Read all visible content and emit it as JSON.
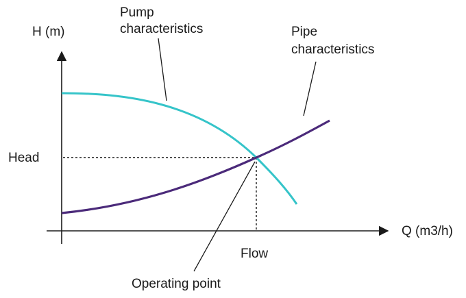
{
  "diagram": {
    "y_axis_label": "H (m)",
    "x_axis_label": "Q (m3/h)",
    "head_label": "Head",
    "flow_label": "Flow",
    "pump_label": [
      "Pump",
      "characteristics"
    ],
    "pipe_label": [
      "Pipe",
      "characteristics"
    ],
    "operating_point_label": "Operating point",
    "colors": {
      "pump_curve": "#35c4c9",
      "pipe_curve": "#4b2a7a",
      "axes": "#1a1a1a",
      "guides": "#1a1a1a"
    }
  }
}
